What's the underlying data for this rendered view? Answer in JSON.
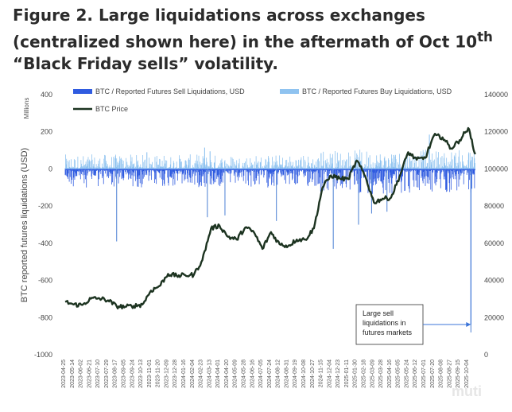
{
  "caption": {
    "before": "Figure 2. Large liquidations across exchanges (centralized shown here) in the aftermath of Oct 10",
    "sup": "th",
    "after": " “Black Friday sells” volatility."
  },
  "watermark": "muti",
  "chart_data": {
    "type": "bar+line",
    "title": "",
    "ylabel": "BTC reported futures liquidations (USD)",
    "ylabel_units": "Millions",
    "ylim": [
      -1000,
      400
    ],
    "yticks": [
      400,
      200,
      0,
      -200,
      -400,
      -600,
      -800,
      -1000
    ],
    "y2lim": [
      0,
      140000
    ],
    "y2ticks": [
      140000,
      120000,
      100000,
      80000,
      60000,
      40000,
      20000,
      0
    ],
    "x_ticks": [
      "2023-04-25",
      "2023-05-14",
      "2023-06-02",
      "2023-06-21",
      "2023-07-10",
      "2023-07-29",
      "2023-08-17",
      "2023-09-05",
      "2023-09-24",
      "2023-10-13",
      "2023-11-01",
      "2023-11-20",
      "2023-12-09",
      "2023-12-28",
      "2024-01-16",
      "2024-02-04",
      "2024-02-23",
      "2024-03-13",
      "2024-04-01",
      "2024-04-20",
      "2024-05-09",
      "2024-05-28",
      "2024-06-16",
      "2024-07-05",
      "2024-07-24",
      "2024-08-12",
      "2024-08-31",
      "2024-09-19",
      "2024-10-08",
      "2024-10-27",
      "2024-11-15",
      "2024-12-04",
      "2024-12-23",
      "2025-01-11",
      "2025-01-30",
      "2025-02-18",
      "2025-03-09",
      "2025-03-28",
      "2025-04-16",
      "2025-05-05",
      "2025-05-24",
      "2025-06-12",
      "2025-07-01",
      "2025-07-20",
      "2025-08-08",
      "2025-08-27",
      "2025-09-15",
      "2025-10-04"
    ],
    "legend": [
      {
        "name": "BTC / Reported Futures Sell Liquidations, USD",
        "color": "#2f5be0",
        "kind": "bar"
      },
      {
        "name": "BTC / Reported Futures Buy Liquidations, USD",
        "color": "#8fc3f0",
        "kind": "bar"
      },
      {
        "name": "BTC Price",
        "color": "#1c3320",
        "kind": "line"
      }
    ],
    "price_series": {
      "name": "BTC Price",
      "x": [
        "2023-04-25",
        "2023-05-14",
        "2023-06-02",
        "2023-06-21",
        "2023-07-10",
        "2023-07-29",
        "2023-08-17",
        "2023-09-05",
        "2023-09-24",
        "2023-10-13",
        "2023-11-01",
        "2023-11-20",
        "2023-12-09",
        "2023-12-28",
        "2024-01-16",
        "2024-02-04",
        "2024-02-23",
        "2024-03-13",
        "2024-04-01",
        "2024-04-20",
        "2024-05-09",
        "2024-05-28",
        "2024-06-16",
        "2024-07-05",
        "2024-07-24",
        "2024-08-12",
        "2024-08-31",
        "2024-09-19",
        "2024-10-08",
        "2024-10-27",
        "2024-11-15",
        "2024-12-04",
        "2024-12-23",
        "2025-01-11",
        "2025-01-30",
        "2025-02-18",
        "2025-03-09",
        "2025-03-28",
        "2025-04-16",
        "2025-05-05",
        "2025-05-24",
        "2025-06-12",
        "2025-07-01",
        "2025-07-20",
        "2025-08-08",
        "2025-08-27",
        "2025-09-15",
        "2025-10-04",
        "2025-10-20"
      ],
      "values": [
        28500,
        27000,
        26800,
        30200,
        30300,
        29300,
        26100,
        25800,
        26300,
        27000,
        34500,
        37000,
        43500,
        42500,
        42800,
        43000,
        51000,
        68000,
        69500,
        63500,
        62000,
        68500,
        66000,
        57000,
        66000,
        59500,
        58500,
        62000,
        62000,
        68000,
        90000,
        96500,
        95000,
        94500,
        104500,
        96000,
        82000,
        84000,
        84500,
        96000,
        109000,
        105000,
        106000,
        118000,
        117000,
        111000,
        115500,
        122000,
        108000
      ]
    },
    "sell_liquidations_notable": [
      {
        "x": "2023-08-17",
        "value": -390
      },
      {
        "x": "2024-03-05",
        "value": -260
      },
      {
        "x": "2024-04-13",
        "value": -250
      },
      {
        "x": "2024-08-05",
        "value": -280
      },
      {
        "x": "2024-12-09",
        "value": -430
      },
      {
        "x": "2025-02-03",
        "value": -300
      },
      {
        "x": "2025-03-04",
        "value": -240
      },
      {
        "x": "2025-04-07",
        "value": -230
      },
      {
        "x": "2025-10-10",
        "value": -880
      }
    ],
    "buy_liquidations_notable": [
      {
        "x": "2023-10-23",
        "value": 90
      },
      {
        "x": "2024-02-28",
        "value": 115
      },
      {
        "x": "2024-03-11",
        "value": 95
      },
      {
        "x": "2024-11-12",
        "value": 85
      },
      {
        "x": "2024-12-05",
        "value": 60
      },
      {
        "x": "2025-04-22",
        "value": 75
      },
      {
        "x": "2025-07-10",
        "value": 185
      },
      {
        "x": "2025-10-05",
        "value": 80
      }
    ],
    "annotation": {
      "text_lines": [
        "Large sell",
        "liquidations in",
        "futures markets"
      ],
      "points_to": "2025-10-10"
    }
  }
}
